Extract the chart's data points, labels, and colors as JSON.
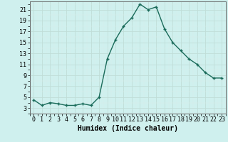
{
  "x": [
    0,
    1,
    2,
    3,
    4,
    5,
    6,
    7,
    8,
    9,
    10,
    11,
    12,
    13,
    14,
    15,
    16,
    17,
    18,
    19,
    20,
    21,
    22,
    23
  ],
  "y": [
    4.5,
    3.5,
    4.0,
    3.8,
    3.5,
    3.5,
    3.8,
    3.5,
    5.0,
    12.0,
    15.5,
    18.0,
    19.5,
    22.0,
    21.0,
    21.5,
    17.5,
    15.0,
    13.5,
    12.0,
    11.0,
    9.5,
    8.5,
    8.5
  ],
  "line_color": "#1a6b5a",
  "marker": "+",
  "marker_size": 3.5,
  "marker_linewidth": 1.0,
  "line_width": 1.0,
  "bg_color": "#cff0ee",
  "grid_color_major": "#c0ddd8",
  "grid_color_minor": "#d8edea",
  "xlabel": "Humidex (Indice chaleur)",
  "xlabel_fontsize": 7,
  "yticks": [
    3,
    5,
    7,
    9,
    11,
    13,
    15,
    17,
    19,
    21
  ],
  "xticks": [
    0,
    1,
    2,
    3,
    4,
    5,
    6,
    7,
    8,
    9,
    10,
    11,
    12,
    13,
    14,
    15,
    16,
    17,
    18,
    19,
    20,
    21,
    22,
    23
  ],
  "ylim": [
    2.0,
    22.5
  ],
  "xlim": [
    -0.5,
    23.5
  ],
  "tick_fontsize": 6.0
}
